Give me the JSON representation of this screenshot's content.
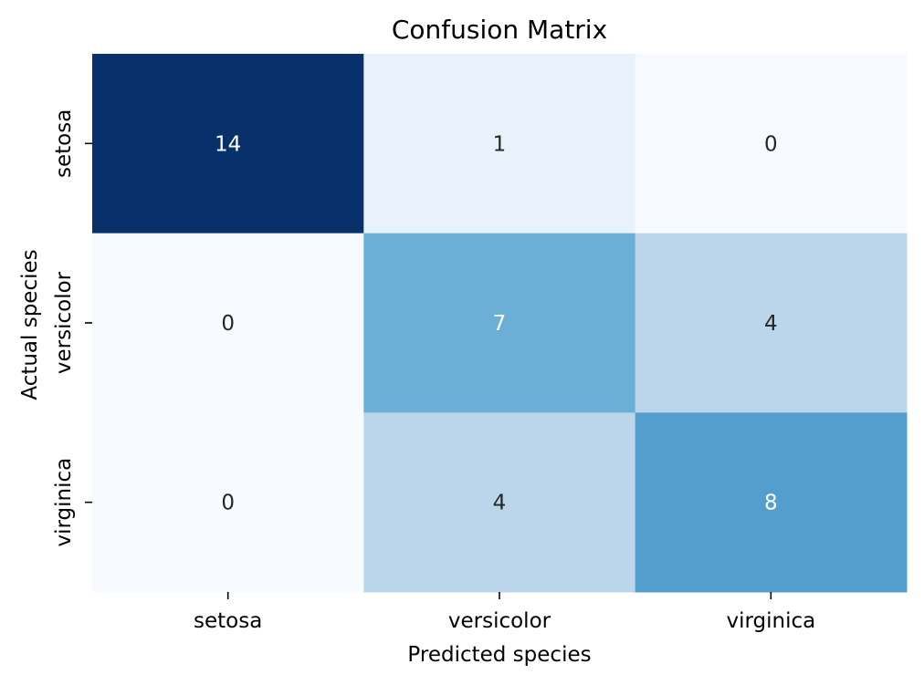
{
  "chart_data": {
    "type": "heatmap",
    "title": "Confusion Matrix",
    "xlabel": "Predicted species",
    "ylabel": "Actual species",
    "x_categories": [
      "setosa",
      "versicolor",
      "virginica"
    ],
    "y_categories": [
      "setosa",
      "versicolor",
      "virginica"
    ],
    "values": [
      [
        14,
        1,
        0
      ],
      [
        0,
        7,
        4
      ],
      [
        0,
        4,
        8
      ]
    ],
    "colormap": "Blues",
    "color_range": [
      0,
      14
    ],
    "colorbar": false,
    "annotations": true
  }
}
